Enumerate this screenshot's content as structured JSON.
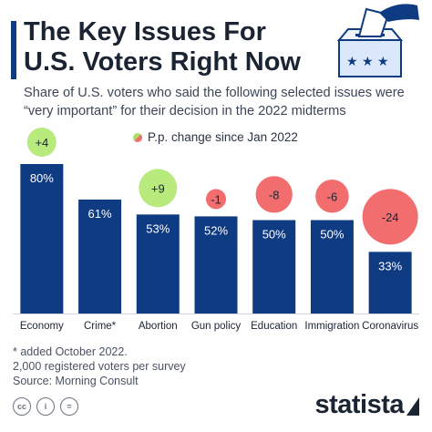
{
  "header": {
    "title": "The Key Issues For U.S. Voters Right Now",
    "subtitle": "Share of U.S. voters who said the following selected issues were “very important” for their decision in the 2022 midterms"
  },
  "legend": {
    "label": "P.p. change since Jan 2022"
  },
  "chart_data": {
    "type": "bar",
    "categories": [
      "Economy",
      "Crime*",
      "Abortion",
      "Gun policy",
      "Education",
      "Immigration",
      "Coronavirus"
    ],
    "value_labels": [
      "80%",
      "61%",
      "53%",
      "52%",
      "50%",
      "50%",
      "33%"
    ],
    "values": [
      80,
      61,
      53,
      52,
      50,
      50,
      33
    ],
    "changes": [
      4,
      null,
      9,
      -1,
      -8,
      -6,
      -24
    ],
    "change_labels": [
      "+4",
      "",
      "+9",
      "-1",
      "-8",
      "-6",
      "-24"
    ],
    "ylim": [
      0,
      80
    ],
    "bar_color": "#0f3b82",
    "positive_color": "#b8ea7e",
    "negative_color": "#f26d6d",
    "title": "",
    "xlabel": "",
    "ylabel": ""
  },
  "footnotes": {
    "line1": "* added October 2022.",
    "line2": "2,000 registered voters per survey",
    "line3": "Source: Morning Consult"
  },
  "footer": {
    "icons": [
      "cc-icon",
      "attribution-icon",
      "no-derivatives-icon"
    ],
    "cc_label": "cc",
    "by_label": "i",
    "nd_label": "=",
    "brand": "statista"
  }
}
